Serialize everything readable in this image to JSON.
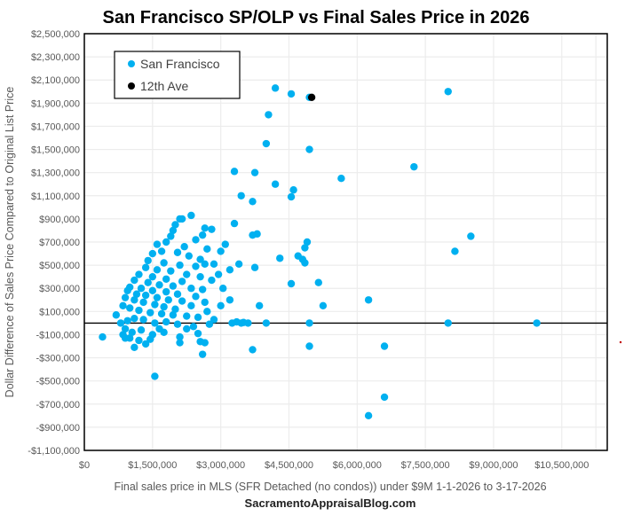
{
  "chart_data": {
    "type": "scatter",
    "title": "San Francisco SP/OLP vs Final Sales Price in 2026",
    "xlabel": "Final sales price in MLS (SFR Detached (no condos)) under $9M 1-1-2026 to 3-17-2026",
    "ylabel": "Dollar Difference of Sales Price Compared to Original List Price",
    "credit": "SacramentoAppraisalBlog.com",
    "xlim": [
      0,
      11500000
    ],
    "ylim": [
      -1100000,
      2500000
    ],
    "x_ticks": [
      0,
      1500000,
      3000000,
      4500000,
      6000000,
      7500000,
      9000000,
      10500000
    ],
    "x_tick_labels": [
      "$0",
      "$1,500,000",
      "$3,000,000",
      "$4,500,000",
      "$6,000,000",
      "$7,500,000",
      "$9,000,000",
      "$10,500,000"
    ],
    "y_ticks": [
      2500000,
      2300000,
      2100000,
      1900000,
      1700000,
      1500000,
      1300000,
      1100000,
      900000,
      700000,
      500000,
      300000,
      100000,
      -100000,
      -300000,
      -500000,
      -700000,
      -900000,
      -1100000
    ],
    "y_tick_labels": [
      "$2,500,000",
      "$2,300,000",
      "$2,100,000",
      "$1,900,000",
      "$1,700,000",
      "$1,500,000",
      "$1,300,000",
      "$1,100,000",
      "$900,000",
      "$700,000",
      "$500,000",
      "$300,000",
      "$100,000",
      "-$100,000",
      "-$300,000",
      "-$500,000",
      "-$700,000",
      "-$900,000",
      "-$1,100,000"
    ],
    "grid": true,
    "zero_line": true,
    "legend": "top-left",
    "series": [
      {
        "name": "San Francisco",
        "color": "#00B0F0",
        "points": [
          [
            4200000,
            2030000
          ],
          [
            4550000,
            1980000
          ],
          [
            4950000,
            1950000
          ],
          [
            8000000,
            2000000
          ],
          [
            4050000,
            1800000
          ],
          [
            4000000,
            1550000
          ],
          [
            4950000,
            1500000
          ],
          [
            7250000,
            1350000
          ],
          [
            3300000,
            1310000
          ],
          [
            3750000,
            1300000
          ],
          [
            5650000,
            1250000
          ],
          [
            4200000,
            1200000
          ],
          [
            3450000,
            1100000
          ],
          [
            4600000,
            1150000
          ],
          [
            4550000,
            1090000
          ],
          [
            3700000,
            1050000
          ],
          [
            2350000,
            930000
          ],
          [
            2100000,
            900000
          ],
          [
            2150000,
            900000
          ],
          [
            3300000,
            860000
          ],
          [
            2000000,
            850000
          ],
          [
            1950000,
            800000
          ],
          [
            2650000,
            820000
          ],
          [
            2800000,
            810000
          ],
          [
            1900000,
            750000
          ],
          [
            2600000,
            760000
          ],
          [
            3700000,
            760000
          ],
          [
            3800000,
            770000
          ],
          [
            4900000,
            700000
          ],
          [
            8500000,
            750000
          ],
          [
            1800000,
            700000
          ],
          [
            2450000,
            720000
          ],
          [
            1600000,
            680000
          ],
          [
            2200000,
            660000
          ],
          [
            3100000,
            680000
          ],
          [
            2700000,
            640000
          ],
          [
            4850000,
            650000
          ],
          [
            8150000,
            620000
          ],
          [
            1700000,
            620000
          ],
          [
            2050000,
            610000
          ],
          [
            3000000,
            620000
          ],
          [
            4300000,
            560000
          ],
          [
            4700000,
            580000
          ],
          [
            1500000,
            600000
          ],
          [
            2300000,
            580000
          ],
          [
            2550000,
            550000
          ],
          [
            2650000,
            510000
          ],
          [
            2850000,
            510000
          ],
          [
            3400000,
            510000
          ],
          [
            3750000,
            480000
          ],
          [
            4800000,
            550000
          ],
          [
            4850000,
            520000
          ],
          [
            1400000,
            540000
          ],
          [
            1750000,
            520000
          ],
          [
            2100000,
            500000
          ],
          [
            2450000,
            490000
          ],
          [
            3200000,
            460000
          ],
          [
            1350000,
            480000
          ],
          [
            1600000,
            460000
          ],
          [
            1900000,
            450000
          ],
          [
            2250000,
            420000
          ],
          [
            2550000,
            400000
          ],
          [
            2950000,
            420000
          ],
          [
            4550000,
            340000
          ],
          [
            5150000,
            350000
          ],
          [
            1200000,
            420000
          ],
          [
            1500000,
            400000
          ],
          [
            1800000,
            380000
          ],
          [
            2150000,
            360000
          ],
          [
            2800000,
            370000
          ],
          [
            3050000,
            300000
          ],
          [
            1100000,
            370000
          ],
          [
            1400000,
            350000
          ],
          [
            1650000,
            330000
          ],
          [
            1950000,
            320000
          ],
          [
            2350000,
            300000
          ],
          [
            2600000,
            290000
          ],
          [
            1000000,
            310000
          ],
          [
            1250000,
            300000
          ],
          [
            1500000,
            280000
          ],
          [
            1800000,
            270000
          ],
          [
            2050000,
            250000
          ],
          [
            2450000,
            230000
          ],
          [
            3850000,
            150000
          ],
          [
            5250000,
            150000
          ],
          [
            6250000,
            200000
          ],
          [
            950000,
            280000
          ],
          [
            1150000,
            250000
          ],
          [
            1350000,
            240000
          ],
          [
            1600000,
            220000
          ],
          [
            1850000,
            200000
          ],
          [
            2150000,
            190000
          ],
          [
            2650000,
            180000
          ],
          [
            3200000,
            200000
          ],
          [
            900000,
            220000
          ],
          [
            1100000,
            200000
          ],
          [
            1300000,
            180000
          ],
          [
            1550000,
            160000
          ],
          [
            1750000,
            140000
          ],
          [
            2000000,
            120000
          ],
          [
            2350000,
            150000
          ],
          [
            2700000,
            100000
          ],
          [
            3000000,
            150000
          ],
          [
            700000,
            70000
          ],
          [
            850000,
            150000
          ],
          [
            1000000,
            130000
          ],
          [
            1200000,
            110000
          ],
          [
            1450000,
            90000
          ],
          [
            1700000,
            80000
          ],
          [
            1950000,
            70000
          ],
          [
            2250000,
            60000
          ],
          [
            2500000,
            50000
          ],
          [
            2850000,
            30000
          ],
          [
            3250000,
            0
          ],
          [
            3450000,
            0
          ],
          [
            3600000,
            0
          ],
          [
            4000000,
            0
          ],
          [
            3350000,
            10000
          ],
          [
            3500000,
            5000
          ],
          [
            4950000,
            0
          ],
          [
            8000000,
            0
          ],
          [
            9950000,
            0
          ],
          [
            800000,
            0
          ],
          [
            950000,
            20000
          ],
          [
            1100000,
            40000
          ],
          [
            1300000,
            30000
          ],
          [
            1550000,
            0
          ],
          [
            1800000,
            10000
          ],
          [
            2050000,
            -10000
          ],
          [
            2400000,
            -30000
          ],
          [
            2750000,
            -10000
          ],
          [
            900000,
            -50000
          ],
          [
            1050000,
            -80000
          ],
          [
            1250000,
            -60000
          ],
          [
            1500000,
            -100000
          ],
          [
            1750000,
            -80000
          ],
          [
            2100000,
            -120000
          ],
          [
            2500000,
            -90000
          ],
          [
            400000,
            -120000
          ],
          [
            850000,
            -100000
          ],
          [
            1000000,
            -130000
          ],
          [
            1200000,
            -150000
          ],
          [
            1450000,
            -140000
          ],
          [
            2550000,
            -160000
          ],
          [
            2650000,
            -170000
          ],
          [
            3700000,
            -230000
          ],
          [
            4950000,
            -200000
          ],
          [
            6600000,
            -200000
          ],
          [
            900000,
            -130000
          ],
          [
            1350000,
            -180000
          ],
          [
            1100000,
            -210000
          ],
          [
            2100000,
            -170000
          ],
          [
            2600000,
            -270000
          ],
          [
            1550000,
            -460000
          ],
          [
            6600000,
            -640000
          ],
          [
            6250000,
            -800000
          ],
          [
            2250000,
            -50000
          ],
          [
            1650000,
            -50000
          ]
        ]
      },
      {
        "name": "12th Ave",
        "color": "#000000",
        "points": [
          [
            5000000,
            1950000
          ]
        ]
      }
    ]
  }
}
